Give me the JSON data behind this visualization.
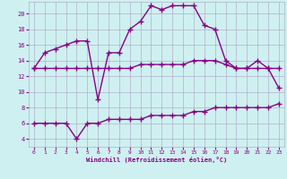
{
  "xlabel": "Windchill (Refroidissement éolien,°C)",
  "bg_color": "#cff0f0",
  "grid_color": "#b0b0cc",
  "line_color": "#880088",
  "x_ticks": [
    0,
    1,
    2,
    3,
    4,
    5,
    6,
    7,
    8,
    9,
    10,
    11,
    12,
    13,
    14,
    15,
    16,
    17,
    18,
    19,
    20,
    21,
    22,
    23
  ],
  "y_ticks": [
    4,
    6,
    8,
    10,
    12,
    14,
    16,
    18,
    20
  ],
  "ylim": [
    3.0,
    21.5
  ],
  "xlim": [
    -0.5,
    23.5
  ],
  "line1_x": [
    0,
    1,
    2,
    3,
    4,
    5,
    6,
    7,
    8,
    9,
    10,
    11,
    12,
    13,
    14,
    15,
    16,
    17,
    18,
    19,
    20,
    21,
    22,
    23
  ],
  "line1_y": [
    13,
    15,
    15.5,
    16,
    16.5,
    16.5,
    9,
    15,
    15,
    18,
    19,
    21,
    20.5,
    21,
    21,
    21,
    18.5,
    18,
    14,
    13,
    13,
    14,
    13,
    10.5
  ],
  "line2_x": [
    0,
    1,
    2,
    3,
    4,
    5,
    6,
    7,
    8,
    9,
    10,
    11,
    12,
    13,
    14,
    15,
    16,
    17,
    18,
    19,
    20,
    21,
    22,
    23
  ],
  "line2_y": [
    13,
    13,
    13,
    13,
    13,
    13,
    13,
    13,
    13,
    13,
    13.5,
    13.5,
    13.5,
    13.5,
    13.5,
    14,
    14,
    14,
    13.5,
    13,
    13,
    13,
    13,
    13
  ],
  "line3_x": [
    0,
    1,
    2,
    3,
    4,
    5,
    6,
    7,
    8,
    9,
    10,
    11,
    12,
    13,
    14,
    15,
    16,
    17,
    18,
    19,
    20,
    21,
    22,
    23
  ],
  "line3_y": [
    6,
    6,
    6,
    6,
    4,
    6,
    6,
    6.5,
    6.5,
    6.5,
    6.5,
    7,
    7,
    7,
    7,
    7.5,
    7.5,
    8,
    8,
    8,
    8,
    8,
    8,
    8.5
  ],
  "marker": "+",
  "markersize": 4,
  "linewidth": 1.0
}
